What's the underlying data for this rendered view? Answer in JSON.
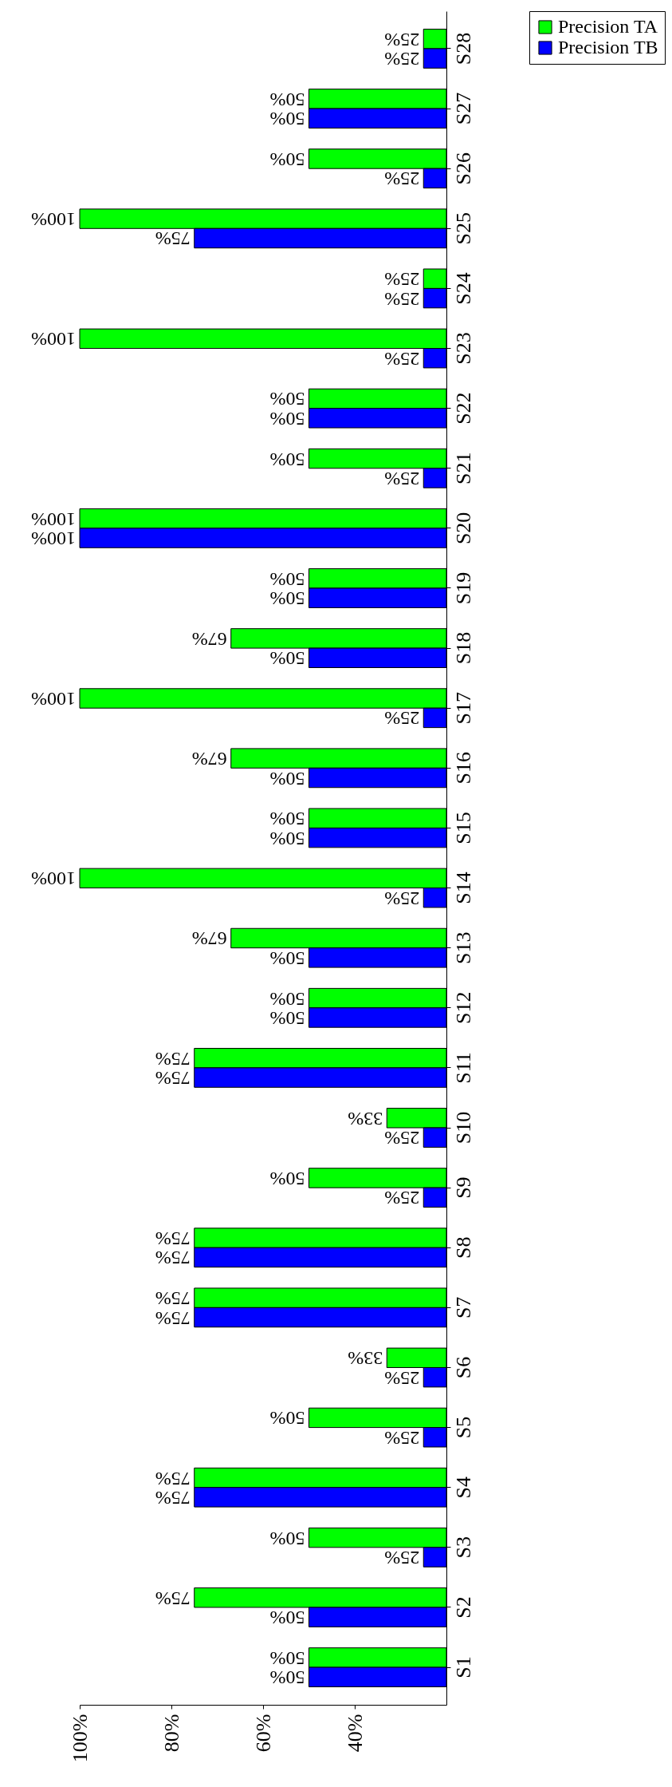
{
  "chart_data": {
    "type": "bar",
    "orientation": "horizontal",
    "categories": [
      "S28",
      "S27",
      "S26",
      "S25",
      "S24",
      "S23",
      "S22",
      "S21",
      "S20",
      "S19",
      "S18",
      "S17",
      "S16",
      "S15",
      "S14",
      "S13",
      "S12",
      "S11",
      "S10",
      "S9",
      "S8",
      "S7",
      "S6",
      "S5",
      "S4",
      "S3",
      "S2",
      "S1"
    ],
    "series": [
      {
        "name": "Precision TA",
        "color": "#00ff00",
        "values": [
          25,
          50,
          50,
          100,
          25,
          100,
          50,
          50,
          100,
          50,
          67,
          100,
          67,
          50,
          100,
          67,
          50,
          75,
          33,
          50,
          75,
          75,
          33,
          50,
          75,
          50,
          75,
          50
        ],
        "value_labels": [
          "25%",
          "50%",
          "50%",
          "100%",
          "25%",
          "100%",
          "50%",
          "50%",
          "100%",
          "50%",
          "67%",
          "100%",
          "67%",
          "50%",
          "100%",
          "67%",
          "50%",
          "75%",
          "33%",
          "50%",
          "75%",
          "75%",
          "33%",
          "50%",
          "75%",
          "50%",
          "75%",
          "50%"
        ]
      },
      {
        "name": "Precision TB",
        "color": "#0000ff",
        "values": [
          25,
          50,
          25,
          75,
          25,
          25,
          50,
          25,
          100,
          50,
          50,
          25,
          50,
          50,
          25,
          50,
          50,
          75,
          25,
          25,
          75,
          75,
          25,
          25,
          75,
          25,
          50,
          50
        ],
        "value_labels": [
          "25%",
          "50%",
          "25%",
          "75%",
          "25%",
          "25%",
          "50%",
          "25%",
          "100%",
          "50%",
          "50%",
          "25%",
          "50%",
          "50%",
          "25%",
          "50%",
          "50%",
          "75%",
          "25%",
          "25%",
          "75%",
          "75%",
          "25%",
          "25%",
          "75%",
          "25%",
          "50%",
          "50%"
        ]
      }
    ],
    "xlim": [
      100,
      20
    ],
    "xticks": [
      {
        "value": 100,
        "label": "100%"
      },
      {
        "value": 80,
        "label": "80%"
      },
      {
        "value": 60,
        "label": "60%"
      },
      {
        "value": 40,
        "label": "40%"
      }
    ],
    "grid": false,
    "legend": "right"
  }
}
